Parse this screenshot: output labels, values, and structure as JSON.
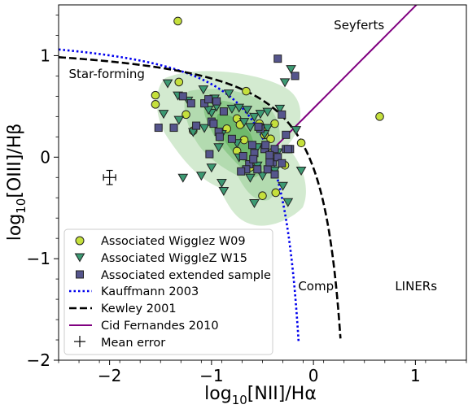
{
  "chart_data": {
    "type": "scatter",
    "title": "",
    "xlabel_base": "log",
    "xlabel_sub": "10",
    "xlabel_rest": "[NII]/Hα",
    "ylabel_base": "log",
    "ylabel_sub": "10",
    "ylabel_rest": "[OIII]/Hβ",
    "xlim": [
      -2.5,
      1.5
    ],
    "ylim": [
      -2.0,
      1.5
    ],
    "x_major_ticks": [
      -2,
      -1,
      0,
      1
    ],
    "x_tick_labels": [
      "−2",
      "−1",
      "0",
      "1"
    ],
    "y_major_ticks": [
      -2,
      -1,
      0,
      1
    ],
    "y_tick_labels": [
      "−2",
      "−1",
      "0",
      "1"
    ],
    "x_minor_step": 0.2,
    "y_minor_step": 0.2,
    "grid": false,
    "legend_position": "bottom-left",
    "region_labels": [
      {
        "text": "Seyferts",
        "x": 0.2,
        "y": 1.3
      },
      {
        "text": "Star-forming",
        "x": -2.4,
        "y": 0.82
      },
      {
        "text": "Comp",
        "x": -0.15,
        "y": -1.27
      },
      {
        "text": "LINERs",
        "x": 0.8,
        "y": -1.27
      }
    ],
    "series": [
      {
        "name": "Associated Wigglez W09",
        "marker": "circle",
        "color": "#c5e03c",
        "points": [
          [
            -1.33,
            1.34
          ],
          [
            -1.32,
            0.74
          ],
          [
            -1.55,
            0.61
          ],
          [
            -1.55,
            0.52
          ],
          [
            -1.25,
            0.42
          ],
          [
            -1.18,
            0.26
          ],
          [
            -0.85,
            0.28
          ],
          [
            -0.75,
            0.38
          ],
          [
            -0.72,
            0.32
          ],
          [
            -0.75,
            0.06
          ],
          [
            -0.68,
            0.17
          ],
          [
            -0.66,
            0.65
          ],
          [
            -0.53,
            0.33
          ],
          [
            -0.5,
            0.29
          ],
          [
            -0.48,
            0.22
          ],
          [
            -0.42,
            0.18
          ],
          [
            -0.38,
            0.33
          ],
          [
            -0.4,
            0.05
          ],
          [
            -0.62,
            -0.1
          ],
          [
            -0.5,
            -0.38
          ],
          [
            -0.37,
            -0.35
          ],
          [
            -0.28,
            -0.08
          ],
          [
            -0.12,
            0.14
          ],
          [
            0.65,
            0.4
          ]
        ]
      },
      {
        "name": "WiggleZ W15",
        "prefix": "Associated ",
        "marker": "triangle-down",
        "color": "#3c9a73",
        "points": [
          [
            -1.43,
            0.73
          ],
          [
            -1.33,
            0.61
          ],
          [
            -1.23,
            0.56
          ],
          [
            -1.08,
            0.67
          ],
          [
            -1.0,
            0.44
          ],
          [
            -0.97,
            0.58
          ],
          [
            -1.03,
            0.47
          ],
          [
            -0.95,
            0.5
          ],
          [
            -0.83,
            0.63
          ],
          [
            -0.8,
            0.48
          ],
          [
            -0.73,
            0.49
          ],
          [
            -0.65,
            0.47
          ],
          [
            -0.68,
            0.35
          ],
          [
            -0.62,
            0.3
          ],
          [
            -0.58,
            0.4
          ],
          [
            -0.52,
            0.43
          ],
          [
            -0.45,
            0.45
          ],
          [
            -0.45,
            0.29
          ],
          [
            -0.48,
            0.23
          ],
          [
            -0.33,
            0.48
          ],
          [
            -0.28,
            0.74
          ],
          [
            -0.22,
            0.87
          ],
          [
            -1.47,
            0.43
          ],
          [
            -1.32,
            0.37
          ],
          [
            -1.07,
            0.29
          ],
          [
            -1.18,
            0.25
          ],
          [
            -0.9,
            0.23
          ],
          [
            -0.75,
            0.14
          ],
          [
            -0.55,
            0.1
          ],
          [
            -0.93,
            0.1
          ],
          [
            -0.73,
            0.0
          ],
          [
            -1.0,
            -0.1
          ],
          [
            -1.1,
            -0.18
          ],
          [
            -0.9,
            -0.25
          ],
          [
            -0.62,
            -0.2
          ],
          [
            -0.55,
            -0.08
          ],
          [
            -0.5,
            -0.18
          ],
          [
            -0.38,
            -0.13
          ],
          [
            -0.3,
            -0.28
          ],
          [
            -0.25,
            -0.44
          ],
          [
            -0.12,
            -0.13
          ],
          [
            -0.17,
            0.27
          ],
          [
            -0.35,
            0.05
          ],
          [
            -0.58,
            -0.45
          ],
          [
            -0.88,
            -0.33
          ],
          [
            -1.28,
            -0.2
          ]
        ]
      },
      {
        "name": "Associated extended sample",
        "marker": "square",
        "color": "#55558c",
        "points": [
          [
            -1.52,
            0.29
          ],
          [
            -1.37,
            0.29
          ],
          [
            -1.28,
            0.6
          ],
          [
            -1.2,
            0.53
          ],
          [
            -1.15,
            0.31
          ],
          [
            -1.07,
            0.53
          ],
          [
            -1.03,
            0.57
          ],
          [
            -1.0,
            0.35
          ],
          [
            -0.98,
            0.33
          ],
          [
            -0.95,
            0.55
          ],
          [
            -0.88,
            0.45
          ],
          [
            -0.93,
            0.25
          ],
          [
            -0.92,
            0.2
          ],
          [
            -1.02,
            0.03
          ],
          [
            -0.8,
            0.18
          ],
          [
            -0.6,
            0.12
          ],
          [
            -0.58,
            0.04
          ],
          [
            -0.52,
            0.28
          ],
          [
            -0.48,
            0.08
          ],
          [
            -0.45,
            -0.12
          ],
          [
            -0.4,
            -0.05
          ],
          [
            -0.38,
            -0.17
          ],
          [
            -0.35,
            0.0
          ],
          [
            -0.31,
            0.42
          ],
          [
            -0.27,
            0.22
          ],
          [
            -0.27,
            0.08
          ],
          [
            -0.23,
            0.08
          ],
          [
            -0.35,
            0.97
          ],
          [
            -0.18,
            0.8
          ],
          [
            -0.63,
            -0.07
          ],
          [
            -0.66,
            -0.12
          ],
          [
            -0.55,
            -0.12
          ],
          [
            -0.54,
            0.3
          ],
          [
            -0.43,
            -0.05
          ],
          [
            -0.47,
            0.12
          ],
          [
            -0.38,
            0.08
          ],
          [
            -0.43,
            0.02
          ],
          [
            -0.31,
            -0.06
          ],
          [
            -0.25,
            0.08
          ],
          [
            -0.69,
            0.01
          ],
          [
            -0.71,
            -0.14
          ],
          [
            -0.59,
            -0.02
          ]
        ]
      }
    ],
    "lines": [
      {
        "name": "Kauffmann 2003",
        "style": "dotted",
        "color": "#0000ee"
      },
      {
        "name": "Kewley 2001",
        "style": "dashed",
        "color": "#000000"
      },
      {
        "name": "Cid Fernandes 2010",
        "style": "solid",
        "color": "#800080"
      }
    ],
    "mean_error": {
      "name": "Mean error",
      "x": -2.0,
      "y": -0.2,
      "xerr": 0.06,
      "yerr": 0.07
    },
    "density_contour": {
      "label": "",
      "colors": [
        "#d3ead0",
        "#b3dbb0",
        "#8ec98b",
        "#6fb96b"
      ]
    }
  }
}
